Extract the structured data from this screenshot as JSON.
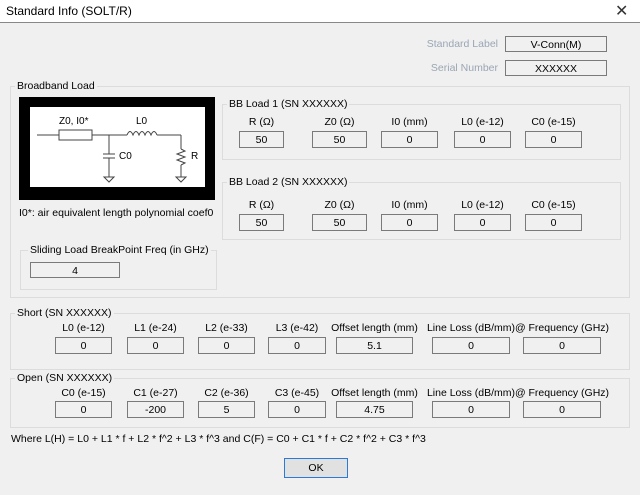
{
  "window": {
    "title": "Standard Info (SOLT/R)",
    "close_icon": "close-icon"
  },
  "standard_label": {
    "label": "Standard Label",
    "value": "V-Conn(M)"
  },
  "serial_number": {
    "label": "Serial Number",
    "value": "XXXXXX"
  },
  "broadband": {
    "title": "Broadband Load",
    "diagram": {
      "z0": "Z0, I0*",
      "l0": "L0",
      "c0": "C0",
      "r": "R"
    },
    "note": "I0*: air equivalent length polynomial coef0",
    "sliding": {
      "title": "Sliding Load BreakPoint Freq (in GHz)",
      "value": "4"
    },
    "bb1": {
      "title": "BB Load 1 (SN XXXXXX)",
      "fields": [
        {
          "label": "R (Ω)",
          "value": "50"
        },
        {
          "label": "Z0 (Ω)",
          "value": "50"
        },
        {
          "label": "I0 (mm)",
          "value": "0"
        },
        {
          "label": "L0 (e-12)",
          "value": "0"
        },
        {
          "label": "C0 (e-15)",
          "value": "0"
        }
      ]
    },
    "bb2": {
      "title": "BB Load 2 (SN XXXXXX)",
      "fields": [
        {
          "label": "R (Ω)",
          "value": "50"
        },
        {
          "label": "Z0 (Ω)",
          "value": "50"
        },
        {
          "label": "I0 (mm)",
          "value": "0"
        },
        {
          "label": "L0 (e-12)",
          "value": "0"
        },
        {
          "label": "C0 (e-15)",
          "value": "0"
        }
      ]
    }
  },
  "short": {
    "title": "Short (SN XXXXXX)",
    "fields": [
      {
        "label": "L0 (e-12)",
        "value": "0"
      },
      {
        "label": "L1 (e-24)",
        "value": "0"
      },
      {
        "label": "L2 (e-33)",
        "value": "0"
      },
      {
        "label": "L3 (e-42)",
        "value": "0"
      },
      {
        "label": "Offset length (mm)",
        "value": "5.1"
      },
      {
        "label": "Line Loss (dB/mm)",
        "value": "0"
      },
      {
        "label": "@ Frequency (GHz)",
        "value": "0"
      }
    ]
  },
  "open": {
    "title": "Open (SN XXXXXX)",
    "fields": [
      {
        "label": "C0 (e-15)",
        "value": "0"
      },
      {
        "label": "C1 (e-27)",
        "value": "-200"
      },
      {
        "label": "C2 (e-36)",
        "value": "5"
      },
      {
        "label": "C3 (e-45)",
        "value": "0"
      },
      {
        "label": "Offset length (mm)",
        "value": "4.75"
      },
      {
        "label": "Line Loss (dB/mm)",
        "value": "0"
      },
      {
        "label": "@ Frequency (GHz)",
        "value": "0"
      }
    ]
  },
  "formula": "Where L(H) = L0 + L1 * f + L2 * f^2 + L3 * f^3  and  C(F) = C0 + C1 * f + C2 * f^2 + C3 * f^3",
  "ok_label": "OK"
}
